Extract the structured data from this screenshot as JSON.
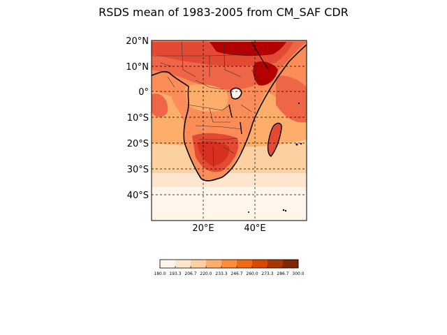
{
  "title": "RSDS mean of 1983-2005 from CM_SAF CDR",
  "lat_labels": [
    "20°N",
    "10°N",
    "0°",
    "10°S",
    "20°S",
    "30°S",
    "40°S"
  ],
  "lon_labels": [
    "20°E",
    "40°E"
  ],
  "colorbar": {
    "ticks": [
      "180.0",
      "193.3",
      "206.7",
      "220.0",
      "233.3",
      "246.7",
      "260.0",
      "273.3",
      "286.7",
      "300.0"
    ],
    "colors": [
      "#fff5eb",
      "#fee6ce",
      "#fdd0a2",
      "#fdae6b",
      "#fd8d3c",
      "#f16913",
      "#d94801",
      "#a63603",
      "#7f2704"
    ]
  },
  "palette": {
    "ocean_south": "#fff5eb",
    "ocean_mid": "#fee6ce",
    "ocean_warm": "#fdd0a2",
    "ocean_tropic": "#fdae6b",
    "land_high": "#e34a33",
    "land_peak": "#b30000",
    "land_mid": "#ef6548",
    "land_low": "#fc8d59"
  },
  "chart_data": {
    "type": "heatmap",
    "title": "RSDS mean of 1983-2005 from CM_SAF CDR",
    "xlabel": "",
    "ylabel": "",
    "lon_range": [
      0,
      60
    ],
    "lat_range": [
      -50,
      20
    ],
    "lon_ticks": [
      20,
      40
    ],
    "lat_ticks": [
      20,
      10,
      0,
      -10,
      -20,
      -30,
      -40
    ],
    "grid": true,
    "color_levels": [
      180.0,
      193.3,
      206.7,
      220.0,
      233.3,
      246.7,
      260.0,
      273.3,
      286.7,
      300.0
    ],
    "colormap": "Oranges/Reds"
  }
}
